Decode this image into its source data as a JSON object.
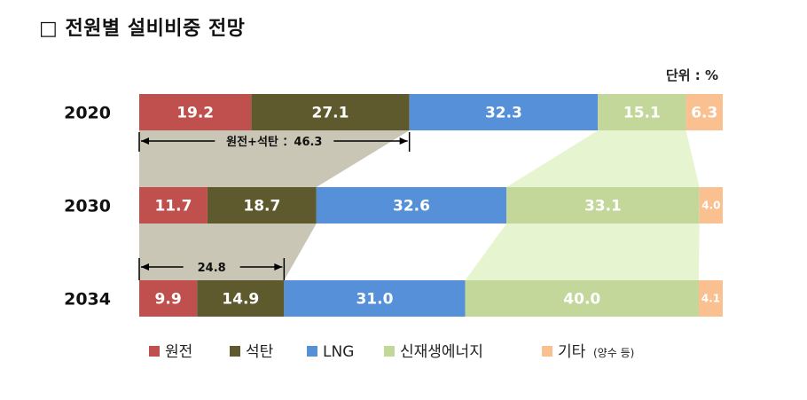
{
  "title": "□ 전원별 설비비중 전망",
  "unit_label": "단위 : %",
  "chart_data": {
    "type": "bar",
    "orientation": "horizontal",
    "stacked": true,
    "percent_stacked": true,
    "title": "□ 전원별 설비비중 전망",
    "unit": "단위 : %",
    "categories": [
      "2020",
      "2030",
      "2034"
    ],
    "series": [
      {
        "name": "원전",
        "color": "#c0504d",
        "values": [
          19.2,
          11.7,
          9.9
        ]
      },
      {
        "name": "석탄",
        "color": "#5e5a2d",
        "values": [
          27.1,
          18.7,
          14.9
        ]
      },
      {
        "name": "LNG",
        "color": "#5590d9",
        "values": [
          32.3,
          32.6,
          31.0
        ]
      },
      {
        "name": "신재생에너지",
        "color": "#c4d79b",
        "values": [
          15.1,
          33.1,
          40.0
        ]
      },
      {
        "name": "기타",
        "color": "#fac08f",
        "values": [
          6.3,
          4.0,
          4.1
        ]
      }
    ],
    "legend_suffix": "(양수 등)",
    "legend_position": "bottom",
    "annotations": [
      {
        "label": "원전+석탄 ：46.3",
        "category": "2020",
        "series": [
          "원전",
          "석탄"
        ]
      },
      {
        "label": "24.8",
        "category": "2034",
        "series": [
          "원전",
          "석탄"
        ]
      }
    ],
    "connectors": [
      {
        "series": [
          "원전",
          "석탄"
        ],
        "color": "#c9c6b5"
      },
      {
        "series": [
          "신재생에너지"
        ],
        "color": "#e6f5d0"
      }
    ],
    "grid": false
  }
}
